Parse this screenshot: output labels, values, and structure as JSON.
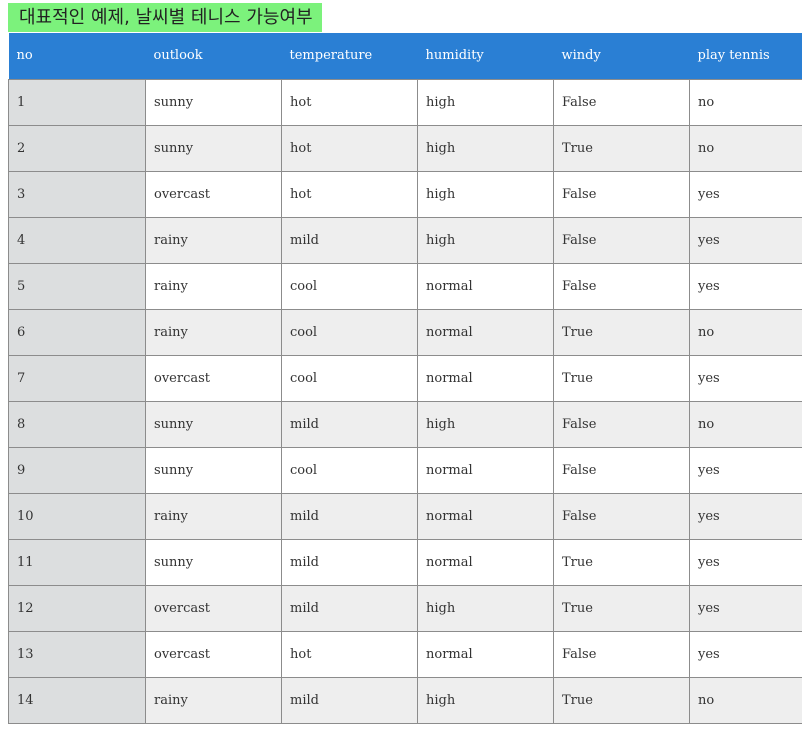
{
  "title": "대표적인 예제, 날씨별 테니스 가능여부",
  "colors": {
    "title_highlight": "#7cf27c",
    "header_background": "#2a7fd4",
    "header_text": "#ffffff",
    "row_even": "#eeeeee",
    "index_column": "#dcdedf"
  },
  "table": {
    "columns": [
      "no",
      "outlook",
      "temperature",
      "humidity",
      "windy",
      "play tennis"
    ],
    "rows": [
      [
        "1",
        "sunny",
        "hot",
        "high",
        "False",
        "no"
      ],
      [
        "2",
        "sunny",
        "hot",
        "high",
        "True",
        "no"
      ],
      [
        "3",
        "overcast",
        "hot",
        "high",
        "False",
        "yes"
      ],
      [
        "4",
        "rainy",
        "mild",
        "high",
        "False",
        "yes"
      ],
      [
        "5",
        "rainy",
        "cool",
        "normal",
        "False",
        "yes"
      ],
      [
        "6",
        "rainy",
        "cool",
        "normal",
        "True",
        "no"
      ],
      [
        "7",
        "overcast",
        "cool",
        "normal",
        "True",
        "yes"
      ],
      [
        "8",
        "sunny",
        "mild",
        "high",
        "False",
        "no"
      ],
      [
        "9",
        "sunny",
        "cool",
        "normal",
        "False",
        "yes"
      ],
      [
        "10",
        "rainy",
        "mild",
        "normal",
        "False",
        "yes"
      ],
      [
        "11",
        "sunny",
        "mild",
        "normal",
        "True",
        "yes"
      ],
      [
        "12",
        "overcast",
        "mild",
        "high",
        "True",
        "yes"
      ],
      [
        "13",
        "overcast",
        "hot",
        "normal",
        "False",
        "yes"
      ],
      [
        "14",
        "rainy",
        "mild",
        "high",
        "True",
        "no"
      ]
    ]
  }
}
